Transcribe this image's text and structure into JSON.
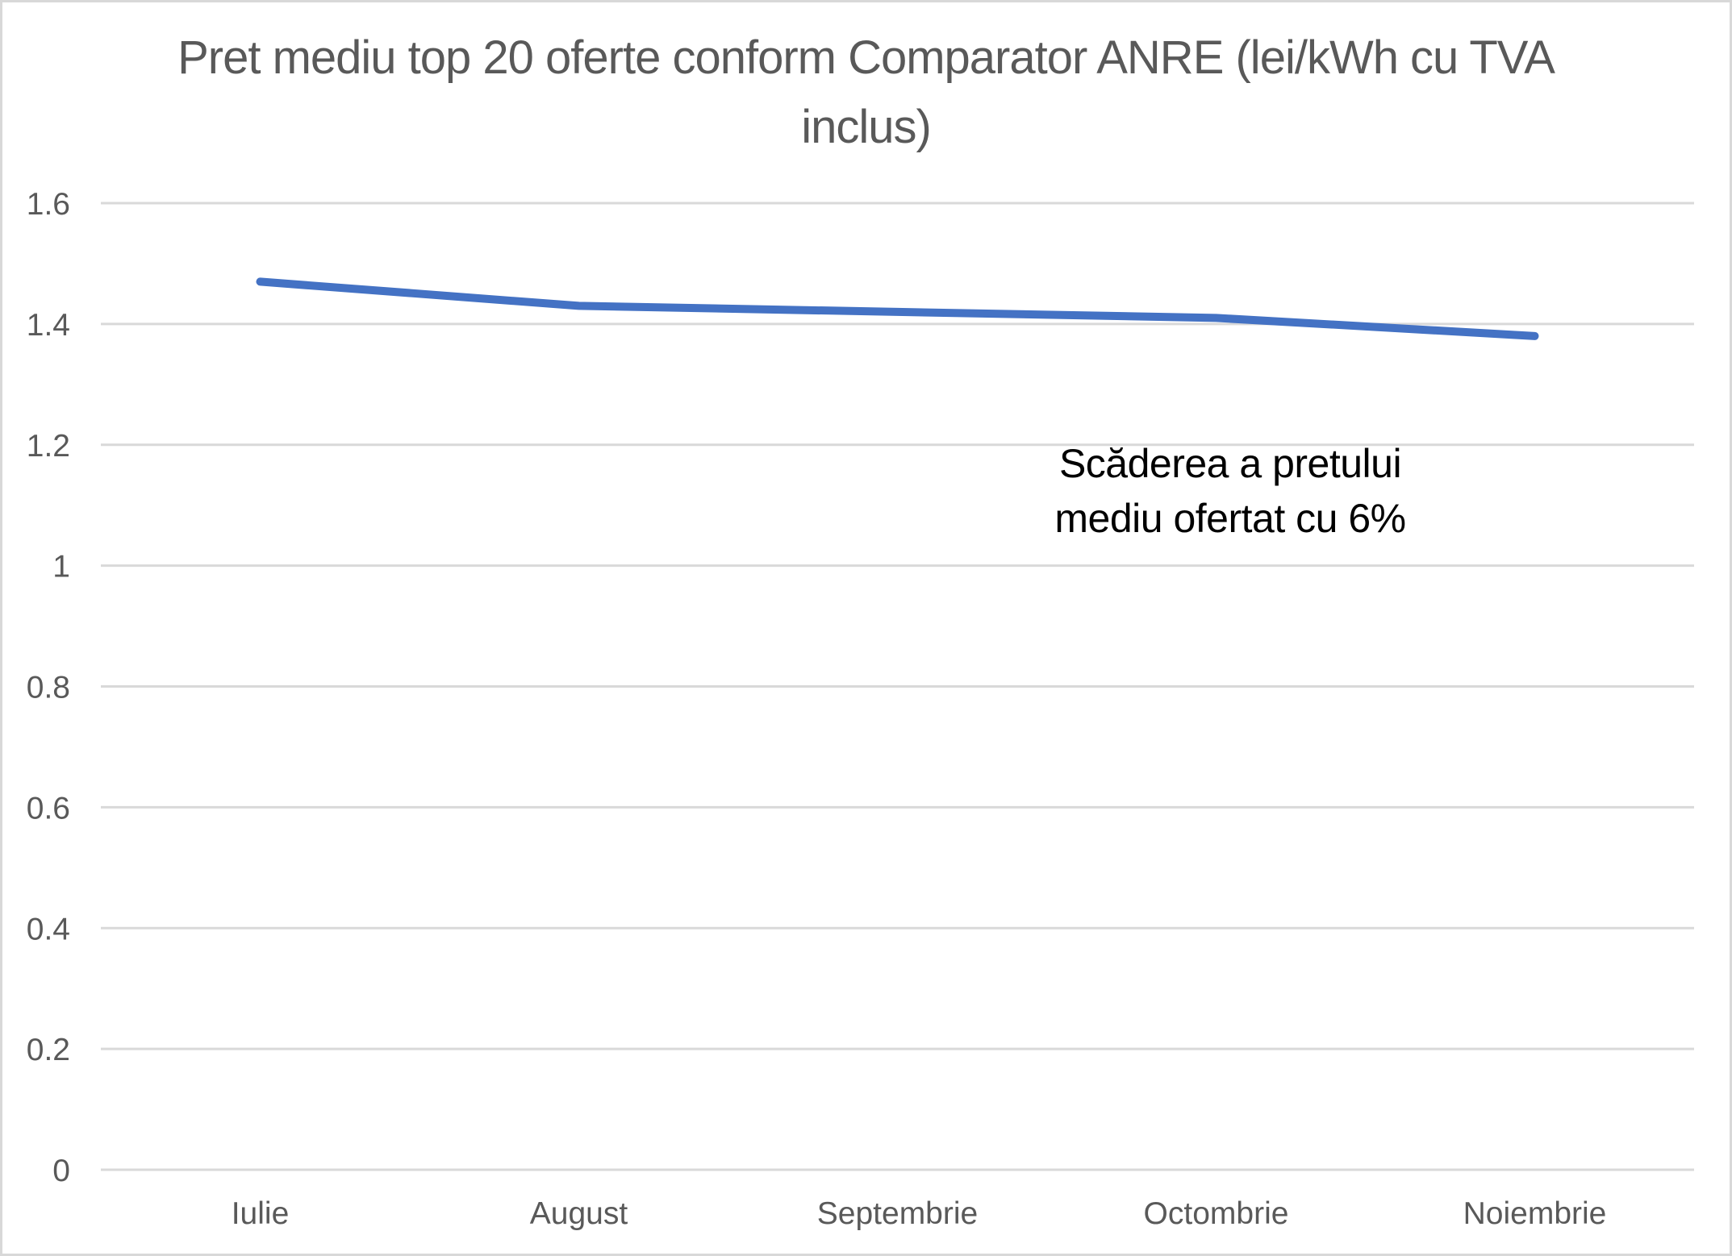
{
  "chart_data": {
    "type": "line",
    "title": "Pret mediu top 20 oferte conform Comparator ANRE (lei/kWh cu TVA inclus)",
    "categories": [
      "Iulie",
      "August",
      "Septembrie",
      "Octombrie",
      "Noiembrie"
    ],
    "values": [
      1.47,
      1.43,
      1.42,
      1.41,
      1.38
    ],
    "xlabel": "",
    "ylabel": "",
    "ylim": [
      0,
      1.6
    ],
    "y_ticks": [
      {
        "label": "0",
        "value": 0
      },
      {
        "label": "0.2",
        "value": 0.2
      },
      {
        "label": "0.4",
        "value": 0.4
      },
      {
        "label": "0.6",
        "value": 0.6
      },
      {
        "label": "0.8",
        "value": 0.8
      },
      {
        "label": "1",
        "value": 1
      },
      {
        "label": "1.2",
        "value": 1.2
      },
      {
        "label": "1.4",
        "value": 1.4
      },
      {
        "label": "1.6",
        "value": 1.6
      }
    ],
    "grid": "horizontal",
    "legend": "none",
    "annotation": "Scăderea a pretului mediu ofertat cu 6%"
  },
  "colors": {
    "line": "#4472C4",
    "gridline": "#D9D9D9",
    "axis_text": "#595959",
    "title_text": "#595959",
    "annotation_text": "#000000",
    "frame_border": "#D8D8D8",
    "background": "#FFFFFF"
  }
}
